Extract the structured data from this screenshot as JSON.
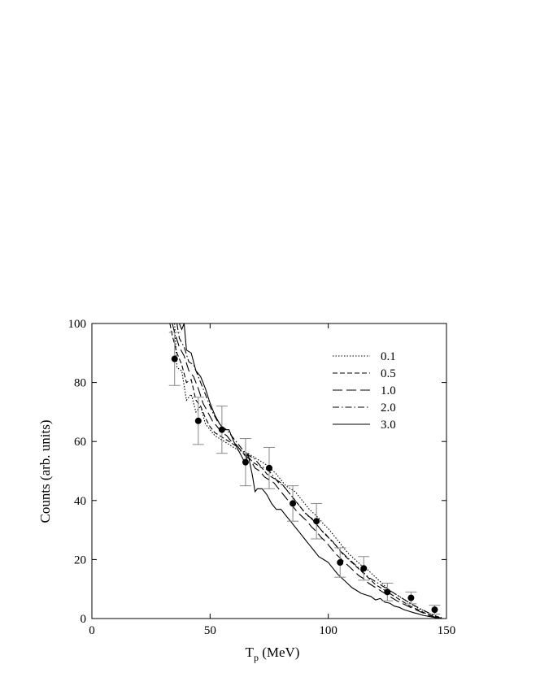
{
  "chart_data": {
    "type": "line",
    "title": "",
    "xlabel": "T",
    "xlabel_subscript": "p",
    "xlabel_unit": " (MeV)",
    "ylabel": "Counts (arb. units)",
    "xlim": [
      0,
      150
    ],
    "ylim": [
      0,
      100
    ],
    "xticks": [
      0,
      50,
      100,
      150
    ],
    "yticks": [
      0,
      20,
      40,
      60,
      80,
      100
    ],
    "grid": false,
    "legend_position": "top-right",
    "series": [
      {
        "name": "0.1",
        "dash": "dotted",
        "x": [
          35,
          36,
          38,
          40,
          42,
          44,
          46,
          48,
          50,
          52,
          54,
          56,
          58,
          60,
          62,
          64,
          66,
          68,
          70,
          72,
          74,
          76,
          78,
          80,
          82,
          84,
          86,
          88,
          90,
          92,
          94,
          96,
          98,
          100,
          102,
          104,
          106,
          108,
          110,
          112,
          114,
          116,
          118,
          120,
          122,
          124,
          126,
          128,
          130,
          132,
          134,
          136,
          138,
          140,
          142,
          144,
          146,
          148
        ],
        "y": [
          100,
          85,
          84,
          74,
          76,
          70,
          72,
          66,
          64,
          62,
          61,
          60,
          59,
          58,
          57,
          56.5,
          56,
          55,
          54,
          53,
          52,
          50.5,
          49,
          47,
          45,
          44,
          43,
          41,
          39,
          37,
          35.5,
          34,
          32,
          30.5,
          28.5,
          26.5,
          24.5,
          22.5,
          21,
          19.5,
          18,
          17,
          15.5,
          14,
          12.5,
          11,
          9.5,
          8.5,
          7.5,
          6.5,
          5.5,
          4.5,
          3.5,
          2.8,
          2,
          1.3,
          0.7,
          0.3
        ]
      },
      {
        "name": "0.5",
        "dash": "dashed",
        "x": [
          33,
          34,
          36,
          38,
          40,
          42,
          44,
          46,
          48,
          50,
          52,
          54,
          56,
          58,
          60,
          62,
          64,
          66,
          68,
          70,
          72,
          74,
          76,
          78,
          80,
          82,
          84,
          86,
          88,
          90,
          92,
          94,
          96,
          98,
          100,
          102,
          104,
          106,
          108,
          110,
          112,
          114,
          116,
          118,
          120,
          122,
          124,
          126,
          128,
          130,
          132,
          134,
          136,
          138,
          140,
          142,
          144,
          146,
          148
        ],
        "y": [
          100,
          96,
          90,
          86,
          80,
          81,
          74,
          72,
          68,
          65,
          63,
          62,
          61,
          60,
          59,
          58,
          56,
          55,
          53,
          52,
          51,
          49,
          48,
          47,
          46,
          44,
          42,
          40,
          38,
          36,
          34.5,
          33,
          31,
          29,
          27.5,
          26,
          24,
          22,
          20.5,
          19,
          17.5,
          16,
          14.5,
          13,
          11.5,
          10.5,
          9.5,
          8.5,
          7.5,
          6.5,
          5.5,
          4.5,
          3.7,
          3,
          2.2,
          1.5,
          0.9,
          0.4,
          0.2
        ]
      },
      {
        "name": "1.0",
        "dash": "long-dash",
        "x": [
          34,
          35,
          37,
          39,
          41,
          43,
          45,
          47,
          49,
          51,
          53,
          55,
          57,
          59,
          61,
          63,
          65,
          67,
          69,
          71,
          73,
          75,
          77,
          79,
          81,
          83,
          85,
          87,
          89,
          91,
          93,
          95,
          97,
          99,
          101,
          103,
          105,
          107,
          109,
          111,
          113,
          115,
          117,
          119,
          121,
          123,
          125,
          127,
          129,
          131,
          133,
          135,
          137,
          139,
          141,
          143,
          145,
          147
        ],
        "y": [
          100,
          97,
          92,
          89,
          84,
          82,
          78,
          73,
          70,
          67,
          65,
          63,
          62,
          60,
          59,
          57,
          55,
          54,
          51,
          50,
          48,
          47,
          46,
          44,
          42,
          40,
          38,
          36,
          34.5,
          33,
          31,
          29.5,
          27.5,
          26,
          24,
          22,
          20.5,
          19,
          17.5,
          16,
          14.5,
          13.5,
          12,
          11,
          10,
          9,
          8,
          7,
          6,
          5.2,
          4.5,
          3.7,
          3,
          2.3,
          1.6,
          1,
          0.5,
          0.2
        ]
      },
      {
        "name": "2.0",
        "dash": "dash-dot",
        "x": [
          36,
          37,
          39,
          41,
          43,
          45,
          47,
          49,
          51,
          53,
          55,
          57,
          59,
          61,
          63,
          65,
          67,
          69,
          71,
          73,
          75,
          77,
          79,
          81,
          83,
          85,
          87,
          89,
          91,
          93,
          95,
          97,
          99,
          101,
          103,
          105,
          107,
          109,
          111,
          113,
          115,
          117,
          119,
          121,
          123,
          125,
          127,
          129,
          131,
          133,
          135,
          137,
          139,
          141,
          143,
          145,
          147
        ],
        "y": [
          100,
          95,
          92,
          87,
          86,
          82,
          78,
          74,
          70,
          67,
          65,
          64,
          62,
          60,
          58,
          56,
          55,
          54,
          52,
          51,
          50,
          48,
          46,
          45,
          43,
          41,
          39,
          37,
          35,
          34,
          32,
          30,
          28.5,
          26.5,
          25,
          23,
          21.5,
          20,
          18.5,
          17,
          15.5,
          14,
          13,
          12,
          11,
          10,
          9,
          8,
          7,
          6,
          5,
          4.2,
          3.3,
          2.5,
          1.7,
          1,
          0.4
        ]
      },
      {
        "name": "3.0",
        "dash": "solid",
        "x": [
          37,
          38,
          39,
          40,
          42,
          44,
          46,
          48,
          50,
          52,
          54,
          56,
          58,
          60,
          62,
          64,
          65,
          66,
          68,
          69,
          70,
          72,
          74,
          76,
          78,
          80,
          82,
          84,
          86,
          88,
          90,
          92,
          94,
          96,
          98,
          100,
          102,
          104,
          106,
          108,
          110,
          112,
          114,
          116,
          118,
          120,
          122,
          124,
          126,
          128,
          130,
          132,
          134,
          136,
          138,
          140,
          142,
          144,
          146,
          148
        ],
        "y": [
          100,
          98,
          100,
          91,
          90,
          84,
          82,
          78,
          73,
          69,
          66,
          64,
          64,
          60,
          57,
          54,
          52,
          56,
          48,
          43,
          44,
          44,
          42,
          39,
          37,
          37,
          35,
          33,
          31,
          29,
          27,
          25,
          23,
          21,
          20,
          19,
          17,
          15,
          13.5,
          12,
          10.5,
          9.5,
          8.5,
          8,
          7.5,
          6.3,
          6.8,
          5.5,
          5.2,
          4.2,
          3.8,
          3,
          2.5,
          2,
          1.6,
          1.1,
          0.8,
          0.5,
          0.2,
          0.1
        ]
      }
    ],
    "data_points": {
      "x": [
        35,
        45,
        55,
        65,
        75,
        85,
        95,
        105,
        115,
        125,
        135,
        145
      ],
      "y": [
        88,
        67,
        64,
        53,
        51,
        39,
        33,
        19,
        17,
        9,
        7,
        3
      ],
      "err": [
        9,
        8,
        8,
        8,
        7,
        6,
        6,
        5,
        4,
        3,
        2,
        1.5
      ]
    }
  }
}
